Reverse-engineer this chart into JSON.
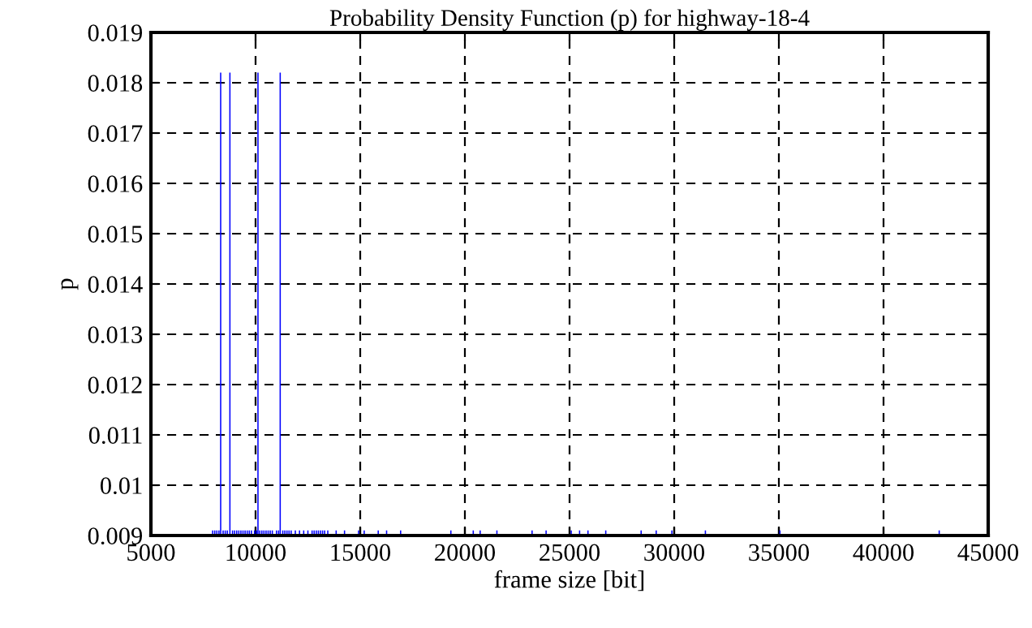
{
  "chart_data": {
    "type": "bar",
    "title": "Probability Density Function (p) for highway-18-4",
    "xlabel": "frame size [bit]",
    "ylabel": "p",
    "x": [
      7950,
      8050,
      8150,
      8250,
      8333,
      8450,
      8550,
      8650,
      8774,
      8900,
      9000,
      9100,
      9200,
      9300,
      9400,
      9500,
      9600,
      9700,
      9800,
      9950,
      10050,
      10115,
      10200,
      10300,
      10400,
      10500,
      10600,
      10700,
      10800,
      11000,
      11100,
      11177,
      11300,
      11400,
      11500,
      11600,
      11700,
      11900,
      12100,
      12300,
      12500,
      12700,
      12800,
      12900,
      13000,
      13100,
      13200,
      13300,
      13450,
      13850,
      14250,
      14920,
      15190,
      15860,
      16260,
      16930,
      19330,
      20400,
      20730,
      21530,
      23210,
      23880,
      25080,
      25480,
      25880,
      26730,
      28420,
      29140,
      29890,
      31490,
      35050,
      42660
    ],
    "values": [
      0.0091,
      0.0091,
      0.0091,
      0.0091,
      0.0182,
      0.0091,
      0.0091,
      0.0091,
      0.0182,
      0.0091,
      0.0091,
      0.0091,
      0.0091,
      0.0091,
      0.0091,
      0.0091,
      0.0091,
      0.0091,
      0.0091,
      0.0091,
      0.0091,
      0.0182,
      0.0091,
      0.0091,
      0.0091,
      0.0091,
      0.0091,
      0.0091,
      0.0091,
      0.0091,
      0.0091,
      0.0182,
      0.0091,
      0.0091,
      0.0091,
      0.0091,
      0.0091,
      0.0091,
      0.0091,
      0.0091,
      0.0091,
      0.0091,
      0.0091,
      0.0091,
      0.0091,
      0.0091,
      0.0091,
      0.0091,
      0.0091,
      0.0091,
      0.0091,
      0.0091,
      0.0091,
      0.0091,
      0.0091,
      0.0091,
      0.0091,
      0.0091,
      0.0091,
      0.0091,
      0.0091,
      0.0091,
      0.0091,
      0.0091,
      0.0091,
      0.0091,
      0.0091,
      0.0091,
      0.0091,
      0.0091,
      0.0091,
      0.0091
    ],
    "color": "#0000ff",
    "xlim": [
      5000,
      45000
    ],
    "xticks": [
      5000,
      10000,
      15000,
      20000,
      25000,
      30000,
      35000,
      40000,
      45000
    ],
    "ylim": [
      0.009,
      0.019
    ],
    "yticks": [
      0.009,
      0.01,
      0.011,
      0.012,
      0.013,
      0.014,
      0.015,
      0.016,
      0.017,
      0.018,
      0.019
    ],
    "grid": true
  }
}
